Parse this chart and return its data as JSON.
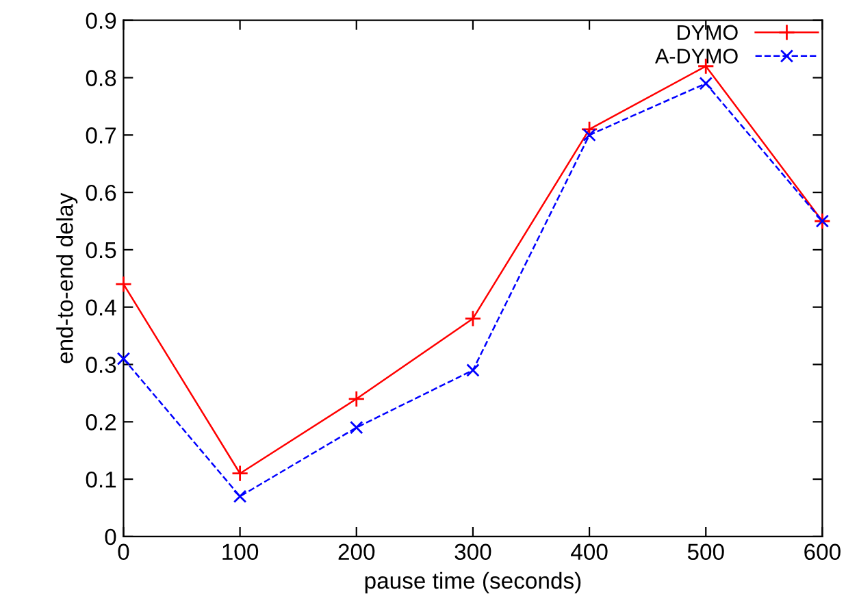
{
  "chart_data": {
    "type": "line",
    "xlabel": "pause time (seconds)",
    "ylabel": "end-to-end delay",
    "x": [
      0,
      100,
      200,
      300,
      400,
      500,
      600
    ],
    "series": [
      {
        "name": "DYMO",
        "color": "#ff0000",
        "marker": "plus",
        "line_style": "solid",
        "values": [
          0.44,
          0.11,
          0.24,
          0.38,
          0.71,
          0.82,
          0.55
        ]
      },
      {
        "name": "A-DYMO",
        "color": "#0000ff",
        "marker": "cross",
        "line_style": "dashed",
        "values": [
          0.31,
          0.07,
          0.19,
          0.29,
          0.7,
          0.79,
          0.55
        ]
      }
    ],
    "xlim": [
      0,
      600
    ],
    "xticks": [
      0,
      100,
      200,
      300,
      400,
      500,
      600
    ],
    "ylim": [
      0,
      0.9
    ],
    "yticks": [
      0,
      0.1,
      0.2,
      0.3,
      0.4,
      0.5,
      0.6,
      0.7,
      0.8,
      0.9
    ],
    "grid": false,
    "legend": "top right"
  }
}
